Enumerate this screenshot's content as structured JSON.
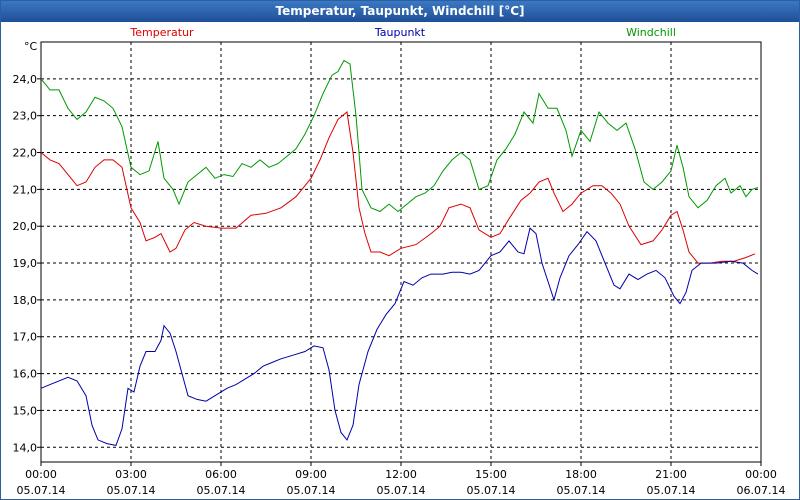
{
  "chart_data": {
    "type": "line",
    "title": "Temperatur, Taupunkt, Windchill [°C]",
    "ylabel": "°C",
    "ylim": [
      13.6,
      25.0
    ],
    "yticks": [
      14.0,
      15.0,
      16.0,
      17.0,
      18.0,
      19.0,
      20.0,
      21.0,
      22.0,
      23.0,
      24.0
    ],
    "ytick_labels": [
      "14,0",
      "15,0",
      "16,0",
      "17,0",
      "18,0",
      "19,0",
      "20,0",
      "21,0",
      "22,0",
      "23,0",
      "24,0"
    ],
    "xlim": [
      0,
      24
    ],
    "xticks": [
      {
        "x": 0,
        "time": "00:00",
        "date": "05.07.14"
      },
      {
        "x": 3,
        "time": "03:00",
        "date": "05.07.14"
      },
      {
        "x": 6,
        "time": "06:00",
        "date": "05.07.14"
      },
      {
        "x": 9,
        "time": "09:00",
        "date": "05.07.14"
      },
      {
        "x": 12,
        "time": "12:00",
        "date": "05.07.14"
      },
      {
        "x": 15,
        "time": "15:00",
        "date": "05.07.14"
      },
      {
        "x": 18,
        "time": "18:00",
        "date": "05.07.14"
      },
      {
        "x": 21,
        "time": "21:00",
        "date": "05.07.14"
      },
      {
        "x": 24,
        "time": "00:00",
        "date": "06.07.14"
      }
    ],
    "grid": true,
    "legend_position": "top",
    "series": [
      {
        "name": "Temperatur",
        "color": "#dd0000",
        "points": [
          [
            0,
            22.0
          ],
          [
            0.3,
            21.8
          ],
          [
            0.6,
            21.7
          ],
          [
            0.9,
            21.4
          ],
          [
            1.2,
            21.1
          ],
          [
            1.5,
            21.2
          ],
          [
            1.8,
            21.6
          ],
          [
            2.1,
            21.8
          ],
          [
            2.4,
            21.8
          ],
          [
            2.7,
            21.6
          ],
          [
            3.0,
            20.5
          ],
          [
            3.3,
            20.1
          ],
          [
            3.5,
            19.6
          ],
          [
            3.8,
            19.7
          ],
          [
            4.0,
            19.8
          ],
          [
            4.3,
            19.3
          ],
          [
            4.5,
            19.4
          ],
          [
            4.8,
            19.9
          ],
          [
            5.1,
            20.1
          ],
          [
            5.5,
            20.0
          ],
          [
            6.0,
            19.95
          ],
          [
            6.5,
            19.95
          ],
          [
            7.0,
            20.3
          ],
          [
            7.5,
            20.35
          ],
          [
            8.0,
            20.5
          ],
          [
            8.5,
            20.8
          ],
          [
            9.0,
            21.3
          ],
          [
            9.3,
            21.8
          ],
          [
            9.6,
            22.4
          ],
          [
            9.9,
            22.9
          ],
          [
            10.2,
            23.1
          ],
          [
            10.4,
            22.0
          ],
          [
            10.6,
            20.5
          ],
          [
            10.8,
            19.8
          ],
          [
            11.0,
            19.3
          ],
          [
            11.3,
            19.3
          ],
          [
            11.6,
            19.2
          ],
          [
            12.0,
            19.4
          ],
          [
            12.5,
            19.5
          ],
          [
            13.0,
            19.8
          ],
          [
            13.3,
            20.0
          ],
          [
            13.6,
            20.5
          ],
          [
            14.0,
            20.6
          ],
          [
            14.3,
            20.5
          ],
          [
            14.6,
            19.9
          ],
          [
            15.0,
            19.7
          ],
          [
            15.3,
            19.8
          ],
          [
            15.6,
            20.2
          ],
          [
            16.0,
            20.7
          ],
          [
            16.3,
            20.9
          ],
          [
            16.6,
            21.2
          ],
          [
            16.9,
            21.3
          ],
          [
            17.1,
            20.9
          ],
          [
            17.4,
            20.4
          ],
          [
            17.7,
            20.6
          ],
          [
            18.0,
            20.9
          ],
          [
            18.4,
            21.1
          ],
          [
            18.7,
            21.1
          ],
          [
            19.0,
            20.9
          ],
          [
            19.3,
            20.6
          ],
          [
            19.6,
            20.0
          ],
          [
            20.0,
            19.5
          ],
          [
            20.4,
            19.6
          ],
          [
            20.7,
            19.9
          ],
          [
            21.0,
            20.3
          ],
          [
            21.2,
            20.4
          ],
          [
            21.4,
            19.9
          ],
          [
            21.6,
            19.3
          ],
          [
            21.9,
            19.0
          ],
          [
            22.3,
            19.0
          ],
          [
            22.7,
            19.05
          ],
          [
            23.1,
            19.05
          ],
          [
            23.5,
            19.15
          ],
          [
            23.8,
            19.25
          ]
        ]
      },
      {
        "name": "Taupunkt",
        "color": "#0000aa",
        "points": [
          [
            0,
            15.6
          ],
          [
            0.3,
            15.7
          ],
          [
            0.6,
            15.8
          ],
          [
            0.9,
            15.9
          ],
          [
            1.2,
            15.8
          ],
          [
            1.5,
            15.4
          ],
          [
            1.7,
            14.6
          ],
          [
            1.9,
            14.2
          ],
          [
            2.2,
            14.1
          ],
          [
            2.5,
            14.05
          ],
          [
            2.7,
            14.5
          ],
          [
            2.9,
            15.6
          ],
          [
            3.1,
            15.5
          ],
          [
            3.3,
            16.2
          ],
          [
            3.5,
            16.6
          ],
          [
            3.8,
            16.6
          ],
          [
            4.0,
            16.9
          ],
          [
            4.1,
            17.3
          ],
          [
            4.3,
            17.1
          ],
          [
            4.5,
            16.6
          ],
          [
            4.7,
            16.0
          ],
          [
            4.9,
            15.4
          ],
          [
            5.2,
            15.3
          ],
          [
            5.5,
            15.25
          ],
          [
            5.8,
            15.4
          ],
          [
            6.2,
            15.6
          ],
          [
            6.5,
            15.7
          ],
          [
            6.8,
            15.85
          ],
          [
            7.1,
            16.0
          ],
          [
            7.4,
            16.2
          ],
          [
            7.7,
            16.3
          ],
          [
            8.0,
            16.4
          ],
          [
            8.4,
            16.5
          ],
          [
            8.8,
            16.6
          ],
          [
            9.1,
            16.75
          ],
          [
            9.4,
            16.7
          ],
          [
            9.6,
            16.1
          ],
          [
            9.8,
            15.0
          ],
          [
            10.0,
            14.4
          ],
          [
            10.2,
            14.2
          ],
          [
            10.4,
            14.6
          ],
          [
            10.6,
            15.7
          ],
          [
            10.9,
            16.6
          ],
          [
            11.2,
            17.2
          ],
          [
            11.5,
            17.6
          ],
          [
            11.8,
            17.9
          ],
          [
            12.1,
            18.5
          ],
          [
            12.4,
            18.4
          ],
          [
            12.7,
            18.6
          ],
          [
            13.0,
            18.7
          ],
          [
            13.4,
            18.7
          ],
          [
            13.7,
            18.75
          ],
          [
            14.0,
            18.75
          ],
          [
            14.3,
            18.7
          ],
          [
            14.6,
            18.8
          ],
          [
            15.0,
            19.2
          ],
          [
            15.3,
            19.3
          ],
          [
            15.6,
            19.6
          ],
          [
            15.9,
            19.3
          ],
          [
            16.1,
            19.25
          ],
          [
            16.3,
            19.95
          ],
          [
            16.5,
            19.8
          ],
          [
            16.7,
            19.0
          ],
          [
            16.9,
            18.5
          ],
          [
            17.1,
            18.0
          ],
          [
            17.3,
            18.6
          ],
          [
            17.6,
            19.2
          ],
          [
            17.9,
            19.5
          ],
          [
            18.2,
            19.85
          ],
          [
            18.5,
            19.6
          ],
          [
            18.8,
            19.0
          ],
          [
            19.1,
            18.4
          ],
          [
            19.3,
            18.3
          ],
          [
            19.6,
            18.7
          ],
          [
            19.9,
            18.55
          ],
          [
            20.2,
            18.7
          ],
          [
            20.5,
            18.8
          ],
          [
            20.8,
            18.6
          ],
          [
            21.1,
            18.1
          ],
          [
            21.3,
            17.9
          ],
          [
            21.5,
            18.2
          ],
          [
            21.7,
            18.8
          ],
          [
            22.0,
            19.0
          ],
          [
            22.5,
            19.0
          ],
          [
            23.0,
            19.05
          ],
          [
            23.4,
            19.0
          ],
          [
            23.7,
            18.8
          ],
          [
            23.9,
            18.7
          ]
        ]
      },
      {
        "name": "Windchill",
        "color": "#009900",
        "points": [
          [
            0,
            24.0
          ],
          [
            0.3,
            23.7
          ],
          [
            0.6,
            23.7
          ],
          [
            0.9,
            23.2
          ],
          [
            1.2,
            22.9
          ],
          [
            1.5,
            23.1
          ],
          [
            1.8,
            23.5
          ],
          [
            2.1,
            23.4
          ],
          [
            2.4,
            23.2
          ],
          [
            2.7,
            22.7
          ],
          [
            3.0,
            21.6
          ],
          [
            3.3,
            21.4
          ],
          [
            3.6,
            21.5
          ],
          [
            3.9,
            22.3
          ],
          [
            4.1,
            21.3
          ],
          [
            4.4,
            21.0
          ],
          [
            4.6,
            20.6
          ],
          [
            4.9,
            21.2
          ],
          [
            5.2,
            21.4
          ],
          [
            5.5,
            21.6
          ],
          [
            5.8,
            21.3
          ],
          [
            6.1,
            21.4
          ],
          [
            6.4,
            21.35
          ],
          [
            6.7,
            21.7
          ],
          [
            7.0,
            21.6
          ],
          [
            7.3,
            21.8
          ],
          [
            7.6,
            21.6
          ],
          [
            7.9,
            21.7
          ],
          [
            8.2,
            21.9
          ],
          [
            8.5,
            22.1
          ],
          [
            8.8,
            22.5
          ],
          [
            9.1,
            23.0
          ],
          [
            9.4,
            23.6
          ],
          [
            9.7,
            24.1
          ],
          [
            9.9,
            24.2
          ],
          [
            10.1,
            24.5
          ],
          [
            10.3,
            24.4
          ],
          [
            10.5,
            23.0
          ],
          [
            10.7,
            21.0
          ],
          [
            11.0,
            20.5
          ],
          [
            11.3,
            20.4
          ],
          [
            11.6,
            20.6
          ],
          [
            11.9,
            20.4
          ],
          [
            12.2,
            20.6
          ],
          [
            12.5,
            20.8
          ],
          [
            12.8,
            20.9
          ],
          [
            13.1,
            21.1
          ],
          [
            13.4,
            21.5
          ],
          [
            13.7,
            21.8
          ],
          [
            14.0,
            22.0
          ],
          [
            14.3,
            21.8
          ],
          [
            14.6,
            21.0
          ],
          [
            14.9,
            21.1
          ],
          [
            15.2,
            21.8
          ],
          [
            15.5,
            22.1
          ],
          [
            15.8,
            22.5
          ],
          [
            16.1,
            23.1
          ],
          [
            16.4,
            22.8
          ],
          [
            16.6,
            23.6
          ],
          [
            16.9,
            23.2
          ],
          [
            17.2,
            23.2
          ],
          [
            17.5,
            22.6
          ],
          [
            17.7,
            21.9
          ],
          [
            18.0,
            22.6
          ],
          [
            18.3,
            22.3
          ],
          [
            18.6,
            23.1
          ],
          [
            18.9,
            22.8
          ],
          [
            19.2,
            22.6
          ],
          [
            19.5,
            22.8
          ],
          [
            19.8,
            22.1
          ],
          [
            20.1,
            21.2
          ],
          [
            20.4,
            21.0
          ],
          [
            20.7,
            21.2
          ],
          [
            21.0,
            21.5
          ],
          [
            21.2,
            22.2
          ],
          [
            21.4,
            21.6
          ],
          [
            21.6,
            20.8
          ],
          [
            21.9,
            20.5
          ],
          [
            22.2,
            20.7
          ],
          [
            22.5,
            21.1
          ],
          [
            22.8,
            21.3
          ],
          [
            23.0,
            20.9
          ],
          [
            23.3,
            21.1
          ],
          [
            23.5,
            20.8
          ],
          [
            23.7,
            21.0
          ],
          [
            23.9,
            21.05
          ]
        ]
      }
    ]
  }
}
